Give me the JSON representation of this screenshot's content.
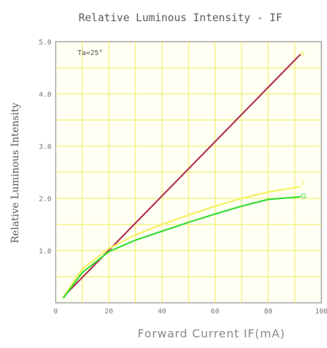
{
  "chart_data": {
    "type": "line",
    "title": "Relative Luminous Intensity - IF",
    "xlabel": "Forward Current IF(mA)",
    "ylabel": "Relative Luminous Intensity",
    "xlim": [
      0,
      100
    ],
    "ylim": [
      0.0,
      5.0
    ],
    "x_ticks": [
      0,
      20,
      40,
      60,
      80,
      100
    ],
    "x_tick_labels": [
      "0",
      "20",
      "40",
      "60",
      "80",
      "100"
    ],
    "y_ticks": [
      1.0,
      2.0,
      3.0,
      4.0,
      5.0
    ],
    "y_tick_labels": [
      "1.0",
      "2.0",
      "3.0",
      "4.0",
      "5.0"
    ],
    "grid": true,
    "annotation": "Ta=25°",
    "series": [
      {
        "name": "",
        "color": "#b03050",
        "x": [
          3,
          92
        ],
        "y": [
          0.12,
          4.75
        ]
      },
      {
        "name": "",
        "color": "#f5f060",
        "x": [
          3,
          10,
          20,
          30,
          40,
          50,
          60,
          70,
          80,
          92
        ],
        "y": [
          0.12,
          0.65,
          1.04,
          1.3,
          1.5,
          1.68,
          1.85,
          2.0,
          2.12,
          2.22
        ]
      },
      {
        "name": "",
        "color": "#33dd33",
        "x": [
          3,
          10,
          20,
          30,
          40,
          50,
          60,
          70,
          80,
          92
        ],
        "y": [
          0.1,
          0.58,
          0.98,
          1.2,
          1.37,
          1.54,
          1.7,
          1.85,
          1.98,
          2.03
        ]
      }
    ],
    "series_labels": [
      {
        "text": "R",
        "color": "#f5f060"
      },
      {
        "text": "Y",
        "color": "#f5f060"
      },
      {
        "text": "G",
        "color": "#33dd33"
      }
    ]
  }
}
